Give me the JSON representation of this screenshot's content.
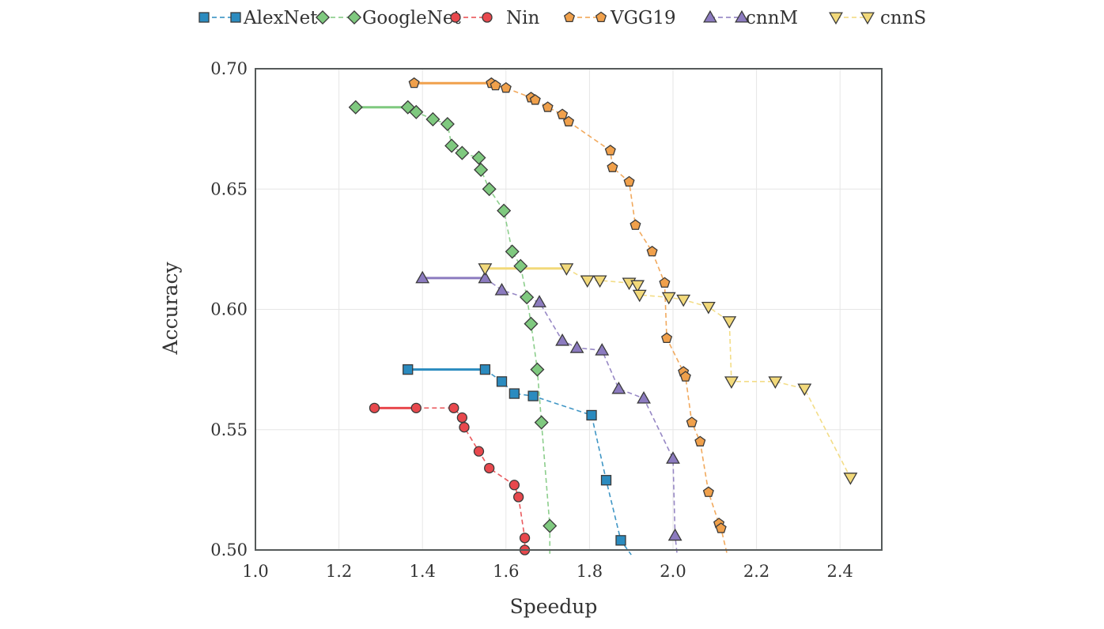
{
  "chart_data": {
    "type": "scatter",
    "xlabel": "Speedup",
    "ylabel": "Accuracy",
    "xlim": [
      1.0,
      2.5
    ],
    "ylim": [
      0.5,
      0.7
    ],
    "xticks": [
      "1.0",
      "1.2",
      "1.4",
      "1.6",
      "1.8",
      "2.0",
      "2.2",
      "2.4"
    ],
    "yticks": [
      "0.50",
      "0.55",
      "0.60",
      "0.65",
      "0.70"
    ],
    "grid": true,
    "legend_position": "top",
    "series": [
      {
        "name": "AlexNet",
        "color": "#2b8bbf",
        "marker": "square",
        "points": [
          [
            1.365,
            0.575
          ],
          [
            1.55,
            0.575
          ],
          [
            1.59,
            0.57
          ],
          [
            1.62,
            0.565
          ],
          [
            1.665,
            0.564
          ],
          [
            1.805,
            0.556
          ],
          [
            1.84,
            0.529
          ],
          [
            1.875,
            0.504
          ],
          [
            1.9,
            0.498
          ]
        ]
      },
      {
        "name": "GoogleNet",
        "color": "#7fc97f",
        "marker": "diamond",
        "points": [
          [
            1.24,
            0.684
          ],
          [
            1.365,
            0.684
          ],
          [
            1.385,
            0.682
          ],
          [
            1.425,
            0.679
          ],
          [
            1.46,
            0.677
          ],
          [
            1.47,
            0.668
          ],
          [
            1.495,
            0.665
          ],
          [
            1.535,
            0.663
          ],
          [
            1.54,
            0.658
          ],
          [
            1.56,
            0.65
          ],
          [
            1.595,
            0.641
          ],
          [
            1.615,
            0.624
          ],
          [
            1.635,
            0.618
          ],
          [
            1.65,
            0.605
          ],
          [
            1.66,
            0.594
          ],
          [
            1.675,
            0.575
          ],
          [
            1.685,
            0.553
          ],
          [
            1.705,
            0.51
          ],
          [
            1.705,
            0.498
          ]
        ]
      },
      {
        "name": "Nin",
        "color": "#e8484d",
        "marker": "circle",
        "points": [
          [
            1.285,
            0.559
          ],
          [
            1.385,
            0.559
          ],
          [
            1.475,
            0.559
          ],
          [
            1.495,
            0.555
          ],
          [
            1.5,
            0.551
          ],
          [
            1.535,
            0.541
          ],
          [
            1.56,
            0.534
          ],
          [
            1.62,
            0.527
          ],
          [
            1.63,
            0.522
          ],
          [
            1.645,
            0.505
          ],
          [
            1.645,
            0.5
          ]
        ]
      },
      {
        "name": "VGG19",
        "color": "#f0a04b",
        "marker": "pentagon",
        "points": [
          [
            1.38,
            0.694
          ],
          [
            1.565,
            0.694
          ],
          [
            1.575,
            0.693
          ],
          [
            1.6,
            0.692
          ],
          [
            1.66,
            0.688
          ],
          [
            1.67,
            0.687
          ],
          [
            1.7,
            0.684
          ],
          [
            1.735,
            0.681
          ],
          [
            1.75,
            0.678
          ],
          [
            1.85,
            0.666
          ],
          [
            1.855,
            0.659
          ],
          [
            1.895,
            0.653
          ],
          [
            1.91,
            0.635
          ],
          [
            1.95,
            0.624
          ],
          [
            1.98,
            0.611
          ],
          [
            1.985,
            0.588
          ],
          [
            2.025,
            0.574
          ],
          [
            2.03,
            0.572
          ],
          [
            2.045,
            0.553
          ],
          [
            2.065,
            0.545
          ],
          [
            2.085,
            0.524
          ],
          [
            2.11,
            0.511
          ],
          [
            2.115,
            0.509
          ],
          [
            2.13,
            0.498
          ]
        ]
      },
      {
        "name": "cnnM",
        "color": "#8c7bbf",
        "marker": "triangle-up",
        "points": [
          [
            1.4,
            0.613
          ],
          [
            1.55,
            0.613
          ],
          [
            1.59,
            0.608
          ],
          [
            1.68,
            0.603
          ],
          [
            1.735,
            0.587
          ],
          [
            1.77,
            0.584
          ],
          [
            1.83,
            0.583
          ],
          [
            1.87,
            0.567
          ],
          [
            1.93,
            0.563
          ],
          [
            2.0,
            0.538
          ],
          [
            2.005,
            0.506
          ],
          [
            2.01,
            0.498
          ]
        ]
      },
      {
        "name": "cnnS",
        "color": "#f2d97a",
        "marker": "triangle-down",
        "points": [
          [
            1.55,
            0.617
          ],
          [
            1.745,
            0.617
          ],
          [
            1.795,
            0.612
          ],
          [
            1.825,
            0.612
          ],
          [
            1.895,
            0.611
          ],
          [
            1.915,
            0.61
          ],
          [
            1.92,
            0.606
          ],
          [
            1.99,
            0.605
          ],
          [
            2.025,
            0.604
          ],
          [
            2.085,
            0.601
          ],
          [
            2.135,
            0.595
          ],
          [
            2.14,
            0.57
          ],
          [
            2.245,
            0.57
          ],
          [
            2.315,
            0.567
          ],
          [
            2.425,
            0.53
          ]
        ]
      }
    ]
  }
}
